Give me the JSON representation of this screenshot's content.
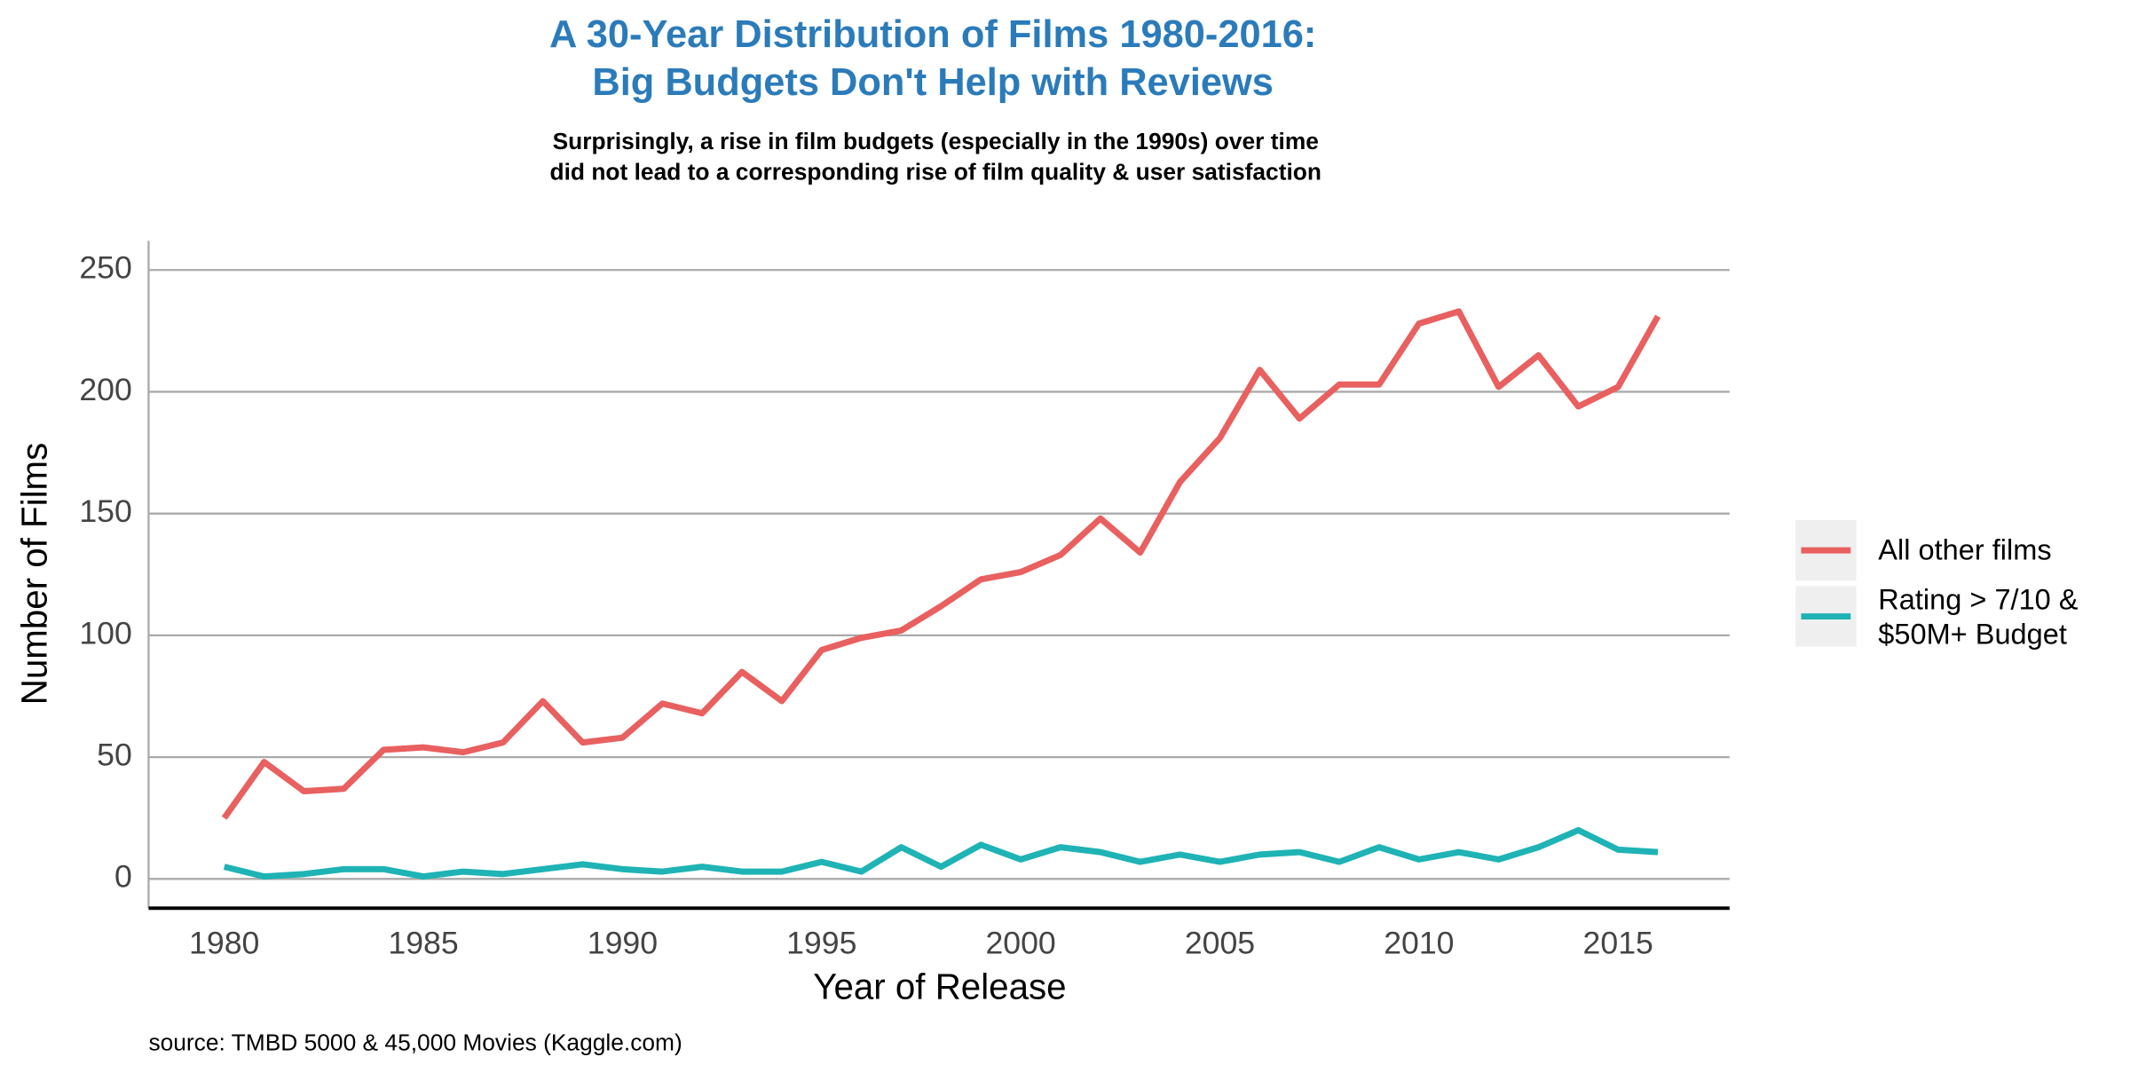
{
  "chart_data": {
    "type": "line",
    "title": "A 30-Year Distribution of Films 1980-2016:\nBig Budgets Don't Help with Reviews",
    "subtitle": "Surprisingly, a rise in film budgets (especially in the 1990s) over time\ndid not lead to a corresponding rise of film quality & user satisfaction",
    "x_label": "Year of Release",
    "y_label": "Number of Films",
    "caption": "source: TMBD 5000 & 45,000 Movies (Kaggle.com)",
    "x": [
      1980,
      1981,
      1982,
      1983,
      1984,
      1985,
      1986,
      1987,
      1988,
      1989,
      1990,
      1991,
      1992,
      1993,
      1994,
      1995,
      1996,
      1997,
      1998,
      1999,
      2000,
      2001,
      2002,
      2003,
      2004,
      2005,
      2006,
      2007,
      2008,
      2009,
      2010,
      2011,
      2012,
      2013,
      2014,
      2015,
      2016
    ],
    "series": [
      {
        "name": "All other films",
        "color": "#e8605f",
        "values": [
          25,
          48,
          36,
          37,
          53,
          54,
          52,
          56,
          73,
          56,
          58,
          72,
          68,
          85,
          73,
          94,
          99,
          102,
          112,
          123,
          126,
          133,
          148,
          134,
          163,
          181,
          209,
          189,
          203,
          203,
          228,
          233,
          202,
          215,
          194,
          202,
          231
        ]
      },
      {
        "name": "Rating > 7/10 &\n$50M+ Budget",
        "color": "#1fb3b5",
        "values": [
          5,
          1,
          2,
          4,
          4,
          1,
          3,
          2,
          4,
          6,
          4,
          3,
          5,
          3,
          3,
          7,
          3,
          13,
          5,
          14,
          8,
          13,
          11,
          7,
          10,
          7,
          10,
          11,
          7,
          13,
          8,
          11,
          8,
          13,
          20,
          12,
          11
        ]
      }
    ],
    "xlim": [
      1978.1,
      2017.8
    ],
    "xticks": [
      1980,
      1985,
      1990,
      1995,
      2000,
      2005,
      2010,
      2015
    ],
    "ylim": [
      -12,
      262
    ],
    "yticks": [
      0,
      50,
      100,
      150,
      200,
      250
    ],
    "grid": true,
    "legend": "right"
  }
}
